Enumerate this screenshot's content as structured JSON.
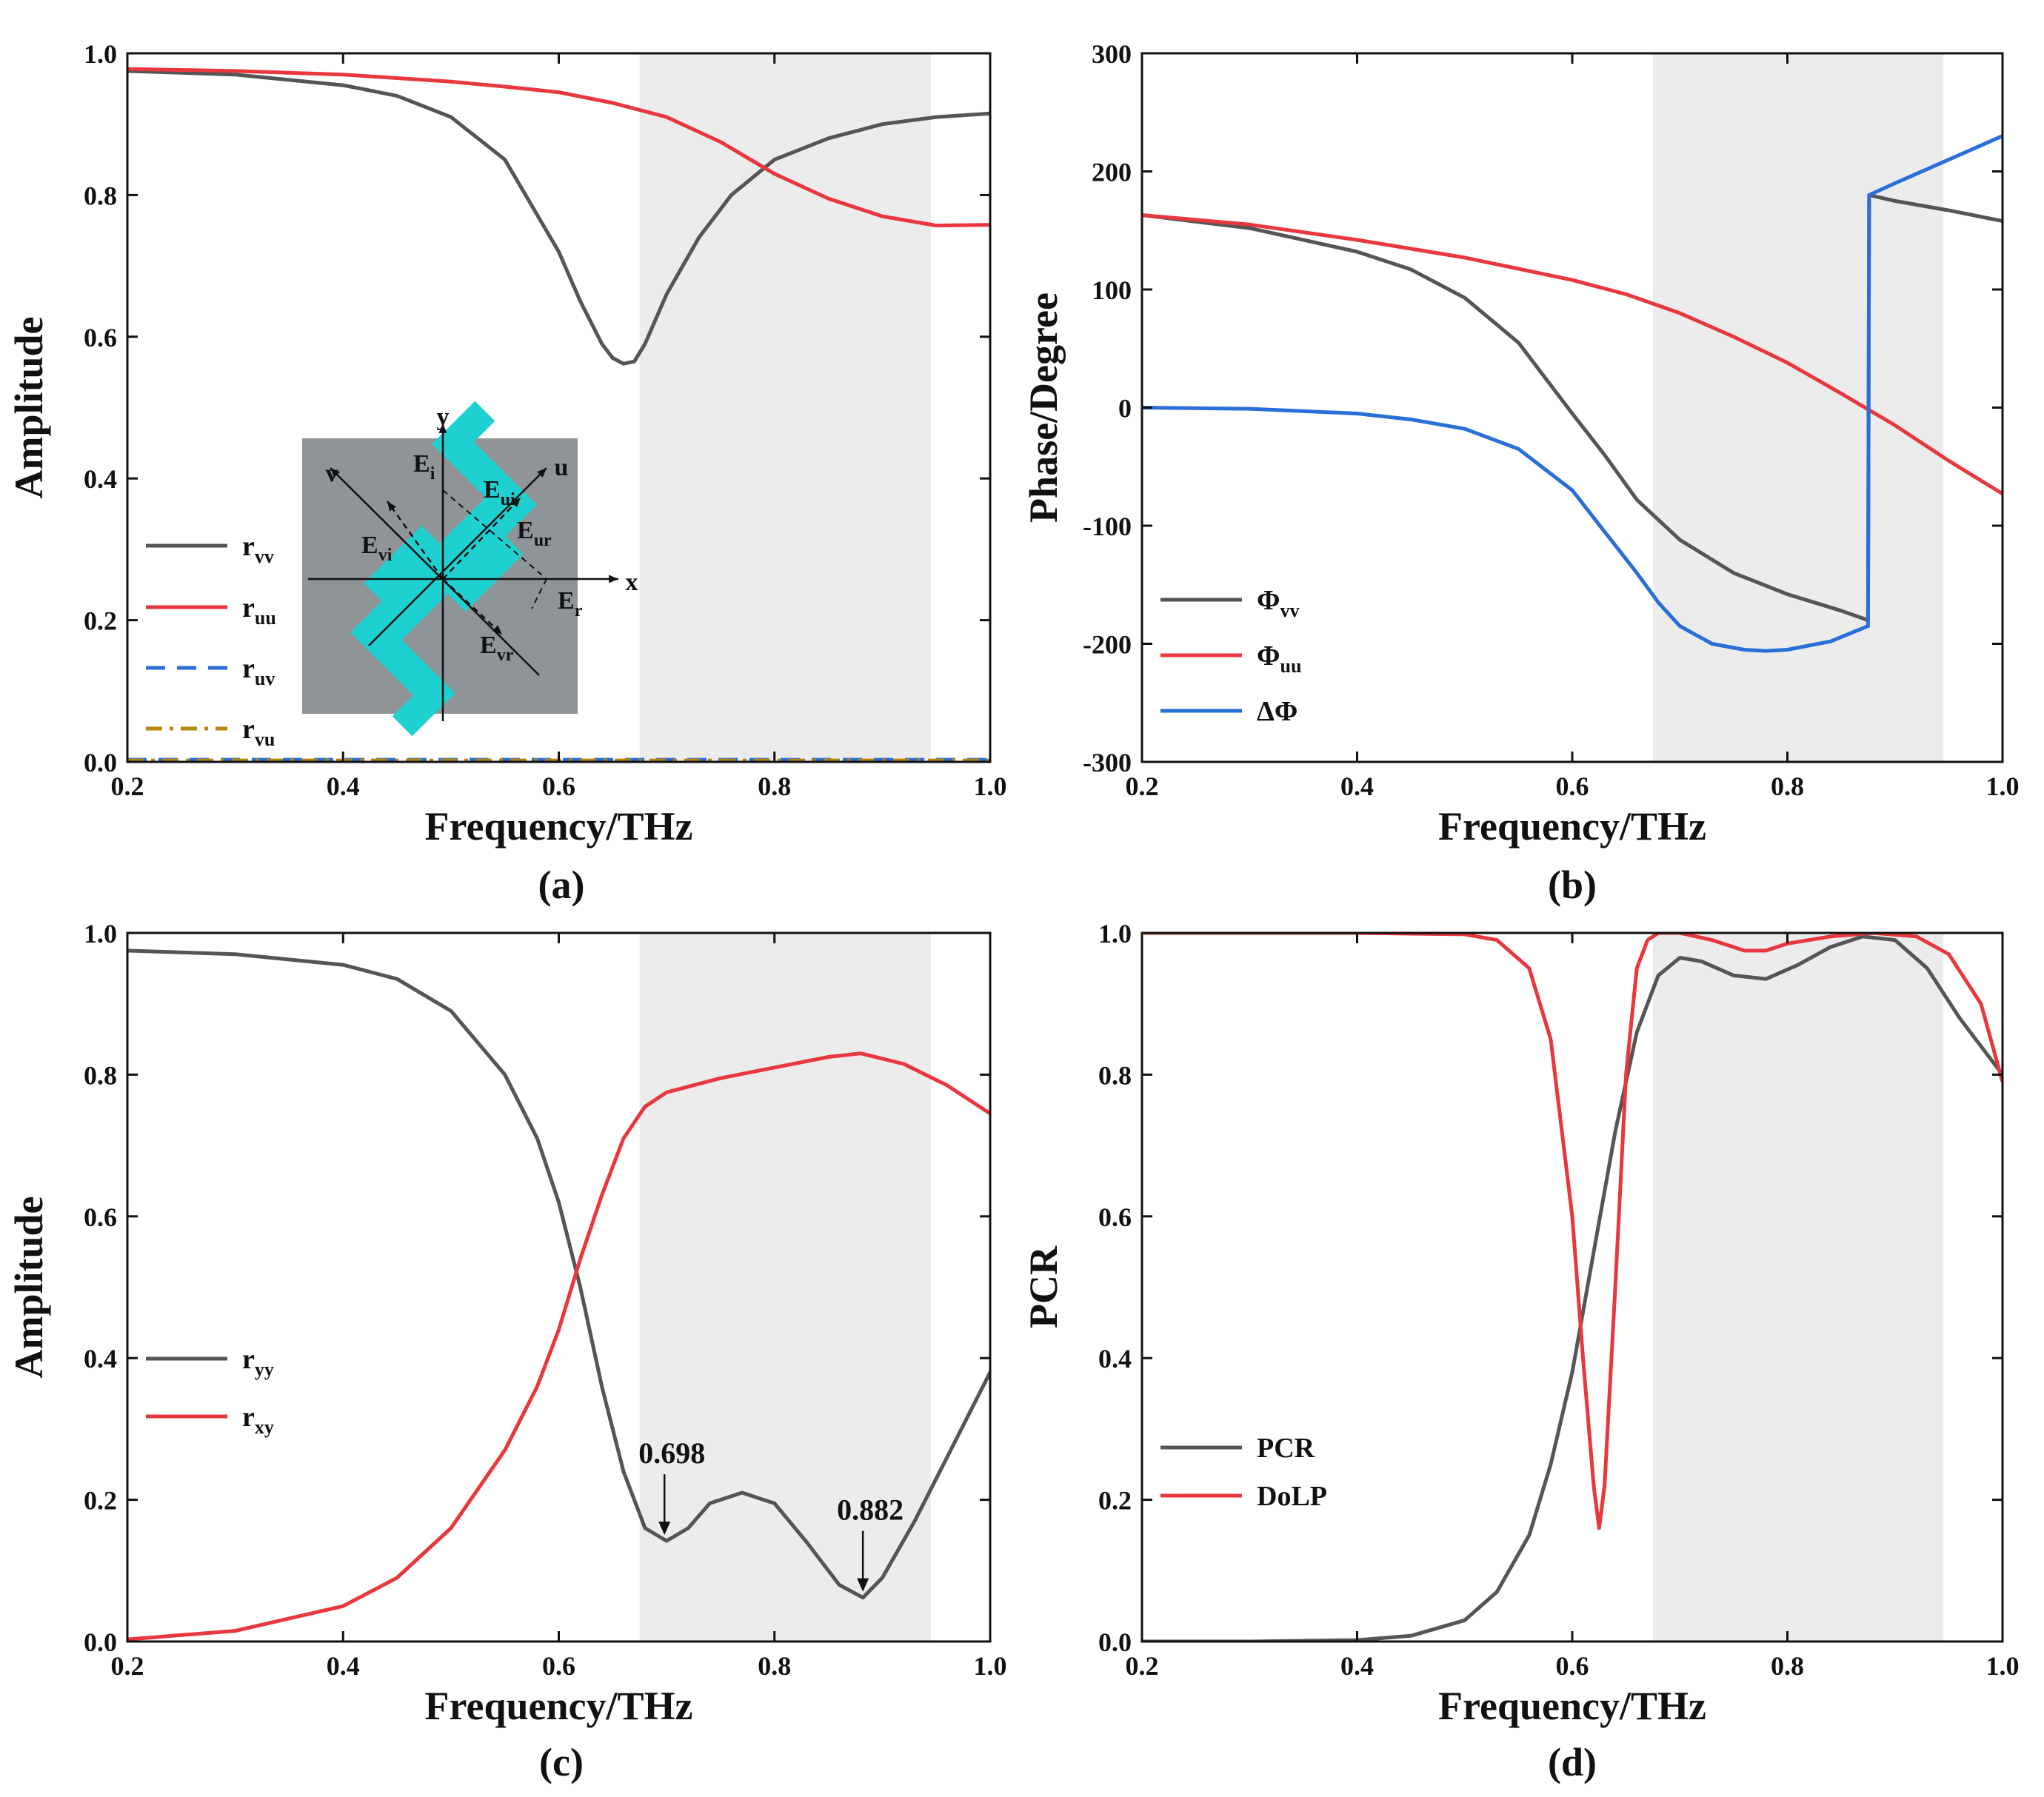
{
  "chart_data": [
    {
      "id": "a",
      "type": "line",
      "panel_label": "(a)",
      "xlabel": "Frequency/THz",
      "ylabel": "Amplitude",
      "xlim": [
        0.2,
        1.0
      ],
      "ylim": [
        0.0,
        1.0
      ],
      "xticks": [
        "0.2",
        "0.4",
        "0.6",
        "0.8",
        "1.0"
      ],
      "yticks": [
        "0.0",
        "0.2",
        "0.4",
        "0.6",
        "0.8",
        "1.0"
      ],
      "shaded_band": [
        0.675,
        0.945
      ],
      "legend": {
        "placement": "bottom-left"
      },
      "series": [
        {
          "name": "r",
          "sub": "vv",
          "color": "#555555",
          "dash": "solid",
          "x": [
            0.2,
            0.3,
            0.4,
            0.45,
            0.5,
            0.55,
            0.6,
            0.62,
            0.64,
            0.65,
            0.66,
            0.67,
            0.68,
            0.7,
            0.73,
            0.76,
            0.8,
            0.85,
            0.9,
            0.95,
            1.0
          ],
          "y": [
            0.975,
            0.97,
            0.955,
            0.94,
            0.91,
            0.85,
            0.72,
            0.65,
            0.59,
            0.57,
            0.562,
            0.565,
            0.59,
            0.66,
            0.74,
            0.8,
            0.85,
            0.88,
            0.9,
            0.91,
            0.915
          ]
        },
        {
          "name": "r",
          "sub": "uu",
          "color": "#e8383d",
          "dash": "solid",
          "x": [
            0.2,
            0.3,
            0.4,
            0.5,
            0.55,
            0.6,
            0.65,
            0.7,
            0.75,
            0.8,
            0.85,
            0.9,
            0.95,
            1.0
          ],
          "y": [
            0.978,
            0.975,
            0.97,
            0.96,
            0.953,
            0.945,
            0.93,
            0.91,
            0.875,
            0.83,
            0.795,
            0.77,
            0.757,
            0.758
          ]
        },
        {
          "name": "r",
          "sub": "uv",
          "color": "#2a6ed8",
          "dash": "dashed",
          "x": [
            0.2,
            0.4,
            0.6,
            0.8,
            1.0
          ],
          "y": [
            0.003,
            0.003,
            0.003,
            0.003,
            0.003
          ]
        },
        {
          "name": "r",
          "sub": "vu",
          "color": "#b8860b",
          "dash": "dashdot",
          "x": [
            0.2,
            0.4,
            0.6,
            0.8,
            1.0
          ],
          "y": [
            0.002,
            0.002,
            0.002,
            0.002,
            0.002
          ]
        }
      ],
      "inset": {
        "labels": {
          "v": "v",
          "y": "y",
          "u": "u",
          "x": "x"
        },
        "fields": [
          {
            "main": "E",
            "sub": "i"
          },
          {
            "main": "E",
            "sub": "ui"
          },
          {
            "main": "E",
            "sub": "ur"
          },
          {
            "main": "E",
            "sub": "vi"
          },
          {
            "main": "E",
            "sub": "r"
          },
          {
            "main": "E",
            "sub": "vr"
          }
        ]
      }
    },
    {
      "id": "b",
      "type": "line",
      "panel_label": "(b)",
      "xlabel": "Frequency/THz",
      "ylabel": "Phase/Degree",
      "xlim": [
        0.2,
        1.0
      ],
      "ylim": [
        -300,
        300
      ],
      "xticks": [
        "0.2",
        "0.4",
        "0.6",
        "0.8",
        "1.0"
      ],
      "yticks": [
        "-300",
        "-200",
        "-100",
        "0",
        "100",
        "200",
        "300"
      ],
      "shaded_band": [
        0.675,
        0.945
      ],
      "legend": {
        "placement": "bottom-left"
      },
      "series": [
        {
          "name": "Φ",
          "sub": "vv",
          "color": "#555555",
          "dash": "solid",
          "x": [
            0.2,
            0.3,
            0.4,
            0.45,
            0.5,
            0.55,
            0.6,
            0.63,
            0.66,
            0.7,
            0.75,
            0.8,
            0.85,
            0.875,
            0.876,
            0.9,
            0.95,
            1.0
          ],
          "y": [
            163,
            152,
            132,
            117,
            93,
            55,
            -5,
            -40,
            -78,
            -112,
            -140,
            -158,
            -172,
            -180,
            180,
            175,
            167,
            158
          ]
        },
        {
          "name": "Φ",
          "sub": "uu",
          "color": "#e8383d",
          "dash": "solid",
          "x": [
            0.2,
            0.3,
            0.4,
            0.5,
            0.6,
            0.65,
            0.7,
            0.75,
            0.8,
            0.85,
            0.9,
            0.95,
            1.0
          ],
          "y": [
            163,
            155,
            142,
            127,
            108,
            96,
            80,
            60,
            38,
            12,
            -15,
            -45,
            -73
          ]
        },
        {
          "name": "ΔΦ",
          "sub": "",
          "color": "#2a6ed8",
          "dash": "solid",
          "x": [
            0.2,
            0.3,
            0.4,
            0.45,
            0.5,
            0.55,
            0.6,
            0.63,
            0.66,
            0.68,
            0.7,
            0.73,
            0.76,
            0.78,
            0.8,
            0.84,
            0.875,
            0.876,
            0.9,
            0.95,
            1.0
          ],
          "y": [
            0,
            -1,
            -5,
            -10,
            -18,
            -35,
            -70,
            -105,
            -140,
            -165,
            -185,
            -200,
            -205,
            -206,
            -205,
            -198,
            -185,
            180,
            190,
            210,
            230
          ]
        }
      ]
    },
    {
      "id": "c",
      "type": "line",
      "panel_label": "(c)",
      "xlabel": "Frequency/THz",
      "ylabel": "Amplitude",
      "xlim": [
        0.2,
        1.0
      ],
      "ylim": [
        0.0,
        1.0
      ],
      "xticks": [
        "0.2",
        "0.4",
        "0.6",
        "0.8",
        "1.0"
      ],
      "yticks": [
        "0.0",
        "0.2",
        "0.4",
        "0.6",
        "0.8",
        "1.0"
      ],
      "shaded_band": [
        0.675,
        0.945
      ],
      "legend": {
        "placement": "middle-left"
      },
      "series": [
        {
          "name": "r",
          "sub": "yy",
          "color": "#555555",
          "dash": "solid",
          "x": [
            0.2,
            0.3,
            0.4,
            0.45,
            0.5,
            0.55,
            0.58,
            0.6,
            0.62,
            0.64,
            0.66,
            0.68,
            0.7,
            0.72,
            0.74,
            0.77,
            0.8,
            0.83,
            0.86,
            0.882,
            0.9,
            0.93,
            0.96,
            1.0
          ],
          "y": [
            0.975,
            0.97,
            0.955,
            0.935,
            0.89,
            0.8,
            0.71,
            0.62,
            0.5,
            0.36,
            0.24,
            0.16,
            0.142,
            0.16,
            0.195,
            0.21,
            0.195,
            0.14,
            0.08,
            0.062,
            0.09,
            0.17,
            0.26,
            0.38
          ]
        },
        {
          "name": "r",
          "sub": "xy",
          "color": "#e8383d",
          "dash": "solid",
          "x": [
            0.2,
            0.3,
            0.4,
            0.45,
            0.5,
            0.55,
            0.58,
            0.6,
            0.62,
            0.64,
            0.66,
            0.68,
            0.7,
            0.75,
            0.8,
            0.85,
            0.88,
            0.92,
            0.96,
            1.0
          ],
          "y": [
            0.003,
            0.015,
            0.05,
            0.09,
            0.16,
            0.27,
            0.36,
            0.44,
            0.54,
            0.63,
            0.71,
            0.755,
            0.775,
            0.795,
            0.81,
            0.825,
            0.83,
            0.815,
            0.785,
            0.745
          ]
        }
      ],
      "annotations": [
        {
          "text": "0.698",
          "x": 0.698,
          "y": 0.142
        },
        {
          "text": "0.882",
          "x": 0.882,
          "y": 0.062
        }
      ]
    },
    {
      "id": "d",
      "type": "line",
      "panel_label": "(d)",
      "xlabel": "Frequency/THz",
      "ylabel": "PCR",
      "xlim": [
        0.2,
        1.0
      ],
      "ylim": [
        0.0,
        1.0
      ],
      "xticks": [
        "0.2",
        "0.4",
        "0.6",
        "0.8",
        "1.0"
      ],
      "yticks": [
        "0.0",
        "0.2",
        "0.4",
        "0.6",
        "0.8",
        "1.0"
      ],
      "shaded_band": [
        0.675,
        0.945
      ],
      "legend": {
        "placement": "bottom-left"
      },
      "series": [
        {
          "name": "PCR",
          "sub": "",
          "color": "#555555",
          "dash": "solid",
          "x": [
            0.2,
            0.3,
            0.4,
            0.45,
            0.5,
            0.53,
            0.56,
            0.58,
            0.6,
            0.62,
            0.64,
            0.66,
            0.68,
            0.7,
            0.72,
            0.75,
            0.78,
            0.81,
            0.84,
            0.87,
            0.9,
            0.93,
            0.96,
            1.0
          ],
          "y": [
            0.0,
            0.0,
            0.002,
            0.008,
            0.03,
            0.07,
            0.15,
            0.25,
            0.38,
            0.55,
            0.72,
            0.86,
            0.94,
            0.965,
            0.96,
            0.94,
            0.935,
            0.955,
            0.98,
            0.995,
            0.99,
            0.95,
            0.88,
            0.8
          ]
        },
        {
          "name": "DoLP",
          "sub": "",
          "color": "#e8383d",
          "dash": "solid",
          "x": [
            0.2,
            0.4,
            0.5,
            0.53,
            0.56,
            0.58,
            0.6,
            0.61,
            0.62,
            0.625,
            0.63,
            0.64,
            0.65,
            0.66,
            0.67,
            0.68,
            0.7,
            0.73,
            0.76,
            0.78,
            0.8,
            0.84,
            0.88,
            0.92,
            0.95,
            0.98,
            1.0
          ],
          "y": [
            1.0,
            1.0,
            0.998,
            0.99,
            0.95,
            0.85,
            0.6,
            0.4,
            0.22,
            0.16,
            0.22,
            0.5,
            0.8,
            0.95,
            0.99,
            1.0,
            1.0,
            0.99,
            0.975,
            0.975,
            0.985,
            0.995,
            1.0,
            0.995,
            0.97,
            0.9,
            0.79
          ]
        }
      ]
    }
  ]
}
